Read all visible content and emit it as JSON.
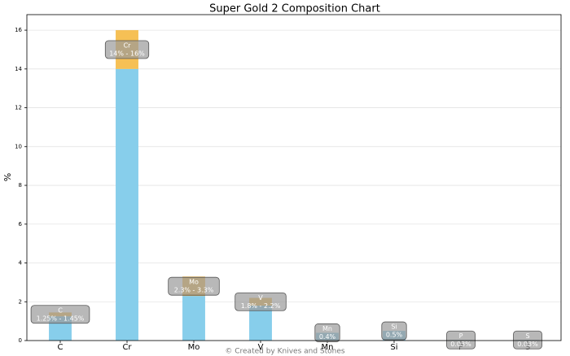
{
  "chart_data": {
    "type": "bar",
    "stacked": true,
    "title": "Super Gold 2 Composition Chart",
    "ylabel": "%",
    "footer": "© Created by Knives and Stones",
    "categories": [
      "C",
      "Cr",
      "Mo",
      "V",
      "Mn",
      "Si",
      "P",
      "S"
    ],
    "series": [
      {
        "color": "#87ceeb",
        "values": [
          1.25,
          14,
          2.3,
          1.8,
          0.4,
          0.5,
          0.03,
          0.03
        ]
      },
      {
        "color": "#f5b942",
        "values": [
          0.2,
          2,
          1,
          0.4,
          0,
          0,
          0,
          0
        ]
      }
    ],
    "value_labels": [
      "1.25% - 1.45%",
      "14% - 16%",
      "2.3% - 3.3%",
      "1.8% - 2.2%",
      "0.4%",
      "0.5%",
      "0.03%",
      "0.03%"
    ],
    "ylim": [
      0,
      16.8
    ],
    "yticks": [
      0,
      2,
      4,
      6,
      8,
      10,
      12,
      14,
      16
    ],
    "grid": true
  }
}
